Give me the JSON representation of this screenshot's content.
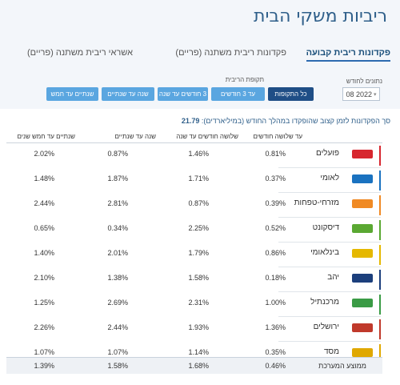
{
  "page": {
    "title": "ריביות משקי הבית"
  },
  "tabs": [
    {
      "label": "פקדונות ריבית קבועה",
      "active": true
    },
    {
      "label": "פקדונות ריבית משתנה (פריים)",
      "active": false
    },
    {
      "label": "אשראי ריבית משתנה (פריים)",
      "active": false
    }
  ],
  "filters": {
    "date_label": "נתונים לחודש",
    "date_value": "08  2022",
    "period_label": "תקופת הריבית",
    "period_buttons": [
      {
        "label": "כל התקופות",
        "selected": true
      },
      {
        "label": "עד 3 חודשים",
        "selected": false
      },
      {
        "label": "3 חודשים עד שנה",
        "selected": false
      },
      {
        "label": "שנה עד שנתיים",
        "selected": false
      },
      {
        "label": "שנתיים עד חמש",
        "selected": false
      }
    ]
  },
  "summary": {
    "text": "סך הפקדונות לזמן קצוב שהופקדו במהלך החודש (במיליארדים):",
    "value": "21.79"
  },
  "table": {
    "headers": [
      "עד שלושה חודשים",
      "שלושה חודשים עד שנה",
      "שנה עד שנתיים",
      "שנתיים עד חמש שנים"
    ],
    "rows": [
      {
        "bank": "פועלים",
        "logo": "poalim",
        "accent": "#d7272f",
        "logo_bg": "#d7272f",
        "values": [
          "0.81%",
          "1.46%",
          "0.87%",
          "2.02%"
        ]
      },
      {
        "bank": "לאומי",
        "logo": "leumi",
        "accent": "#1a72c0",
        "logo_bg": "#1a72c0",
        "values": [
          "0.37%",
          "1.71%",
          "1.87%",
          "1.48%"
        ]
      },
      {
        "bank": "מזרחי-טפחות",
        "logo": "mizrahi",
        "accent": "#f08a24",
        "logo_bg": "#f08a24",
        "values": [
          "0.39%",
          "0.87%",
          "2.81%",
          "2.44%"
        ]
      },
      {
        "bank": "דיסקונט",
        "logo": "discount",
        "accent": "#5aa832",
        "logo_bg": "#5aa832",
        "values": [
          "0.52%",
          "2.25%",
          "0.34%",
          "0.65%"
        ]
      },
      {
        "bank": "בינלאומי",
        "logo": "beinleumi",
        "accent": "#e5b800",
        "logo_bg": "#e5b800",
        "values": [
          "0.86%",
          "1.79%",
          "2.01%",
          "1.40%"
        ]
      },
      {
        "bank": "יהב",
        "logo": "yahav",
        "accent": "#1c3f7c",
        "logo_bg": "#1c3f7c",
        "values": [
          "0.18%",
          "1.58%",
          "1.38%",
          "2.10%"
        ]
      },
      {
        "bank": "מרכנתיל",
        "logo": "mercantile",
        "accent": "#3a9b45",
        "logo_bg": "#3a9b45",
        "values": [
          "1.00%",
          "2.31%",
          "2.69%",
          "1.25%"
        ]
      },
      {
        "bank": "ירושלים",
        "logo": "jerusalem",
        "accent": "#c0392b",
        "logo_bg": "#c0392b",
        "values": [
          "1.36%",
          "1.93%",
          "2.44%",
          "2.26%"
        ]
      },
      {
        "bank": "מסד",
        "logo": "massad",
        "accent": "#e0a800",
        "logo_bg": "#e0a800",
        "values": [
          "0.35%",
          "1.14%",
          "1.07%",
          "1.07%"
        ]
      }
    ],
    "average": {
      "label": "ממוצע המערכת",
      "values": [
        "0.46%",
        "1.68%",
        "1.58%",
        "1.39%"
      ]
    }
  }
}
